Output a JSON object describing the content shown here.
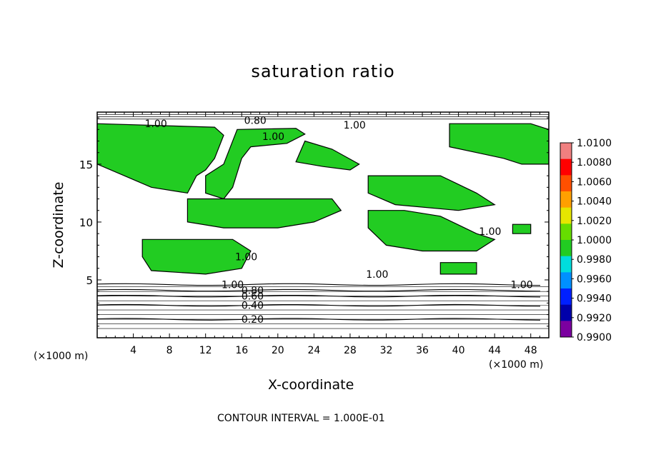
{
  "chart_data": {
    "type": "heatmap",
    "title": "saturation ratio",
    "xlabel": "X-coordinate",
    "ylabel": "Z-coordinate",
    "x_unit_left": "(×1000 m)",
    "x_unit_right": "(×1000 m)",
    "xlim": [
      0,
      50
    ],
    "ylim": [
      0,
      19.5
    ],
    "x_ticks": [
      4,
      8,
      12,
      16,
      20,
      24,
      28,
      32,
      36,
      40,
      44,
      48
    ],
    "y_ticks": [
      5,
      10,
      15
    ],
    "contour_interval_text": "CONTOUR INTERVAL = 1.000E-01",
    "colorbar": {
      "labels": [
        "1.0100",
        "1.0080",
        "1.0060",
        "1.0040",
        "1.0020",
        "1.0000",
        "0.9980",
        "0.9960",
        "0.9940",
        "0.9920",
        "0.9900"
      ],
      "colors": [
        "#f08080",
        "#ff0000",
        "#ff5000",
        "#ffa000",
        "#e6e600",
        "#66dd00",
        "#22cc22",
        "#00dddd",
        "#0090ff",
        "#0020ff",
        "#0000aa",
        "#7b00a0"
      ]
    },
    "contour_labels": [
      {
        "text": "1.00",
        "x": 6.5,
        "y": 18.5
      },
      {
        "text": "0.80",
        "x": 17.5,
        "y": 18.8
      },
      {
        "text": "1.00",
        "x": 19.5,
        "y": 17.4
      },
      {
        "text": "1.00",
        "x": 28.5,
        "y": 18.4
      },
      {
        "text": "1.00",
        "x": 43.5,
        "y": 9.2
      },
      {
        "text": "1.00",
        "x": 16.5,
        "y": 7.0
      },
      {
        "text": "1.00",
        "x": 31.0,
        "y": 5.5
      },
      {
        "text": "1.00",
        "x": 47.0,
        "y": 4.6
      },
      {
        "text": "1.00",
        "x": 15.0,
        "y": 4.6
      },
      {
        "text": "0.80",
        "x": 17.2,
        "y": 4.1
      },
      {
        "text": "0.60",
        "x": 17.2,
        "y": 3.6
      },
      {
        "text": "0.40",
        "x": 17.2,
        "y": 2.8
      },
      {
        "text": "0.20",
        "x": 17.2,
        "y": 1.6
      }
    ],
    "field_regions": [
      {
        "level": "1.0000",
        "polygon": [
          [
            0,
            18.5
          ],
          [
            13,
            18.2
          ],
          [
            14,
            17.5
          ],
          [
            13,
            15.5
          ],
          [
            12,
            14.5
          ],
          [
            11,
            14
          ],
          [
            10,
            12.5
          ],
          [
            6,
            13
          ],
          [
            3,
            14
          ],
          [
            0,
            15
          ]
        ]
      },
      {
        "level": "1.0000",
        "polygon": [
          [
            15.5,
            18
          ],
          [
            22,
            18.1
          ],
          [
            23,
            17.6
          ],
          [
            21,
            16.8
          ],
          [
            17,
            16.5
          ],
          [
            16,
            15.5
          ],
          [
            15,
            13
          ],
          [
            14,
            12
          ],
          [
            12,
            12.5
          ],
          [
            12,
            14
          ],
          [
            14,
            15
          ]
        ]
      },
      {
        "level": "1.0000",
        "polygon": [
          [
            23,
            17
          ],
          [
            26,
            16.3
          ],
          [
            29,
            15
          ],
          [
            28,
            14.5
          ],
          [
            25,
            14.8
          ],
          [
            22,
            15.2
          ]
        ]
      },
      {
        "level": "1.0000",
        "polygon": [
          [
            30,
            14
          ],
          [
            38,
            14
          ],
          [
            42,
            12.5
          ],
          [
            44,
            11.5
          ],
          [
            40,
            11
          ],
          [
            33,
            11.5
          ],
          [
            30,
            12.5
          ]
        ]
      },
      {
        "level": "1.0000",
        "polygon": [
          [
            10,
            12
          ],
          [
            26,
            12
          ],
          [
            27,
            11
          ],
          [
            24,
            10
          ],
          [
            20,
            9.5
          ],
          [
            14,
            9.5
          ],
          [
            10,
            10
          ]
        ]
      },
      {
        "level": "1.0000",
        "polygon": [
          [
            30,
            11
          ],
          [
            34,
            11
          ],
          [
            38,
            10.5
          ],
          [
            42,
            9
          ],
          [
            44,
            8.5
          ],
          [
            42,
            7.5
          ],
          [
            36,
            7.5
          ],
          [
            32,
            8
          ],
          [
            30,
            9.5
          ]
        ]
      },
      {
        "level": "1.0000",
        "polygon": [
          [
            39,
            18.5
          ],
          [
            48,
            18.5
          ],
          [
            50,
            18
          ],
          [
            50,
            15
          ],
          [
            47,
            15
          ],
          [
            45,
            15.5
          ],
          [
            42,
            16
          ],
          [
            39,
            16.5
          ]
        ]
      },
      {
        "level": "1.0000",
        "polygon": [
          [
            5,
            8.5
          ],
          [
            15,
            8.5
          ],
          [
            17,
            7.5
          ],
          [
            16,
            6
          ],
          [
            12,
            5.5
          ],
          [
            6,
            5.8
          ],
          [
            5,
            7
          ]
        ]
      },
      {
        "level": "1.0000",
        "polygon": [
          [
            38,
            6.5
          ],
          [
            42,
            6.5
          ],
          [
            42,
            5.5
          ],
          [
            38,
            5.5
          ]
        ]
      },
      {
        "level": "1.0000",
        "polygon": [
          [
            46,
            9.8
          ],
          [
            48,
            9.8
          ],
          [
            48,
            9
          ],
          [
            46,
            9
          ]
        ]
      }
    ],
    "contours": [
      {
        "level": "0.20",
        "y": 1.6
      },
      {
        "level": "0.40",
        "y": 2.8
      },
      {
        "level": "0.60",
        "y": 3.6
      },
      {
        "level": "0.80",
        "y": 4.1
      },
      {
        "level": "1.00",
        "y": 4.6
      }
    ]
  }
}
